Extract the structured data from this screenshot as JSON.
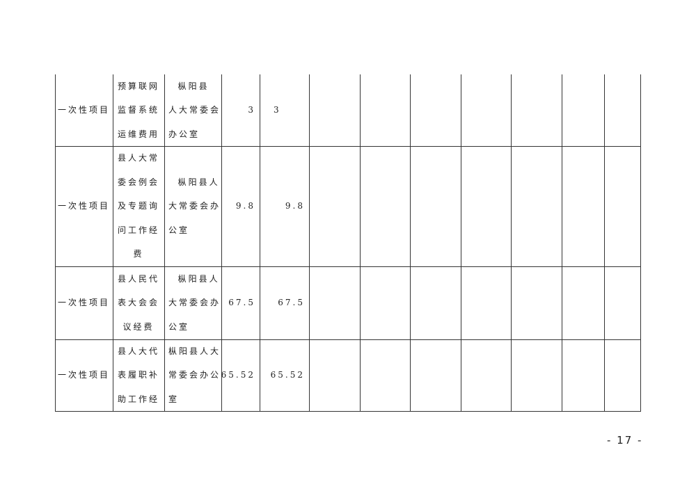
{
  "table": {
    "rows": [
      {
        "type": "一次性项目",
        "name": [
          "预算联网",
          "监督系统",
          "运维费用"
        ],
        "unit": [
          "  枞阳县",
          "人大常委会",
          "办公室"
        ],
        "v1": "3",
        "v2": "3"
      },
      {
        "type": "一次性项目",
        "name": [
          "县人大常",
          "委会例会",
          "及专题询",
          "问工作经",
          "费"
        ],
        "unit": [
          "  枞阳县人",
          "大常委会办",
          "公室"
        ],
        "v1": "9.8",
        "v2": "9.8"
      },
      {
        "type": "一次性项目",
        "name": [
          "县人民代",
          "表大会会",
          "议经费"
        ],
        "unit": [
          "  枞阳县人",
          "大常委会办",
          "公室"
        ],
        "v1": "67.5",
        "v2": "67.5"
      },
      {
        "type": "一次性项目",
        "name": [
          "县人大代",
          "表履职补",
          "助工作经"
        ],
        "unit": [
          "枞阳县人大",
          "常委会办公",
          "室"
        ],
        "v1": "65.52",
        "v2": "65.52"
      }
    ]
  },
  "page_number": "- 17 -"
}
